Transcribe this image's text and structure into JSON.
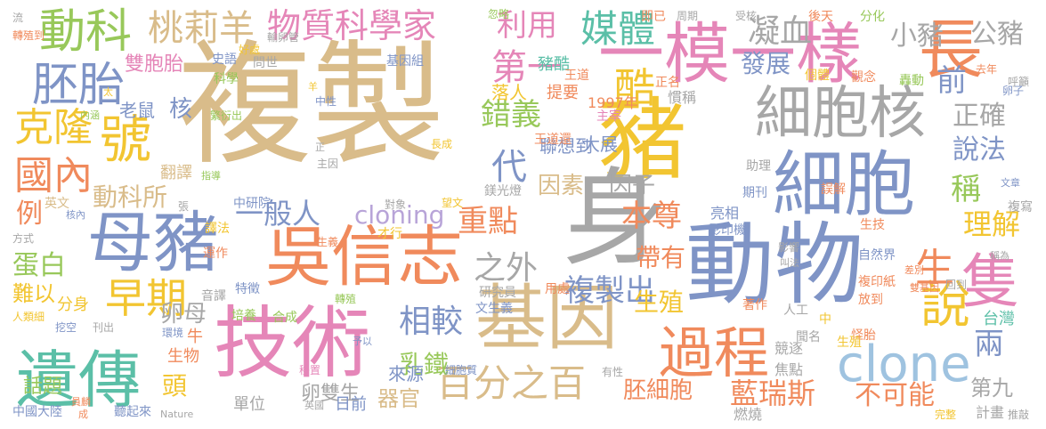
{
  "palette": {
    "tan": "#d9bc8a",
    "blue": "#7f94c6",
    "pink": "#e586b8",
    "orange": "#f08a5c",
    "yellow": "#f2c531",
    "green": "#98c85a",
    "teal": "#5bbfa7",
    "grey": "#a7a7a7",
    "lavender": "#b8a4d8",
    "lightblue": "#9fc3e0"
  },
  "words": [
    {
      "text": "複製",
      "color": "#d9bc8a"
    },
    {
      "text": "豬",
      "color": "#f2c531"
    },
    {
      "text": "身",
      "color": "#a7a7a7"
    },
    {
      "text": "動物",
      "color": "#7f94c6"
    },
    {
      "text": "基因",
      "color": "#d9bc8a"
    },
    {
      "text": "技術",
      "color": "#e586b8"
    },
    {
      "text": "一模一樣",
      "color": "#e586b8"
    },
    {
      "text": "吳信志",
      "color": "#f08a5c"
    },
    {
      "text": "母豬",
      "color": "#7f94c6"
    },
    {
      "text": "細胞",
      "color": "#7f94c6"
    },
    {
      "text": "遺傳",
      "color": "#5bbfa7"
    },
    {
      "text": "細胞核",
      "color": "#a7a7a7"
    },
    {
      "text": "過程",
      "color": "#f08a5c"
    },
    {
      "text": "clone",
      "color": "#9fc3e0"
    },
    {
      "text": "動科",
      "color": "#98c85a"
    },
    {
      "text": "胚胎",
      "color": "#7f94c6"
    },
    {
      "text": "號",
      "color": "#f2c531"
    },
    {
      "text": "克隆",
      "color": "#f2c531"
    },
    {
      "text": "國內",
      "color": "#f08a5c"
    },
    {
      "text": "早期",
      "color": "#f2c531"
    },
    {
      "text": "桃莉羊",
      "color": "#d9bc8a"
    },
    {
      "text": "物質科學家",
      "color": "#e586b8"
    },
    {
      "text": "利用",
      "color": "#e586b8"
    },
    {
      "text": "媒體",
      "color": "#5bbfa7"
    },
    {
      "text": "第一",
      "color": "#e586b8"
    },
    {
      "text": "酷",
      "color": "#f2c531"
    },
    {
      "text": "長",
      "color": "#f08a5c"
    },
    {
      "text": "凝血",
      "color": "#a7a7a7"
    },
    {
      "text": "小豬",
      "color": "#a7a7a7"
    },
    {
      "text": "公豬",
      "color": "#a7a7a7"
    },
    {
      "text": "隻",
      "color": "#e586b8"
    },
    {
      "text": "說",
      "color": "#f2c531"
    },
    {
      "text": "百分之百",
      "color": "#d9bc8a"
    },
    {
      "text": "一般人",
      "color": "#7f94c6"
    },
    {
      "text": "cloning",
      "color": "#b8a4d8"
    },
    {
      "text": "重點",
      "color": "#f08a5c"
    },
    {
      "text": "本尊",
      "color": "#f08a5c"
    },
    {
      "text": "之外",
      "color": "#a7a7a7"
    },
    {
      "text": "相較",
      "color": "#7f94c6"
    },
    {
      "text": "複製出",
      "color": "#7f94c6"
    },
    {
      "text": "藍瑞斯",
      "color": "#f08a5c"
    },
    {
      "text": "不可能",
      "color": "#f08a5c"
    },
    {
      "text": "錯義",
      "color": "#98c85a"
    },
    {
      "text": "代",
      "color": "#7f94c6"
    },
    {
      "text": "因素",
      "color": "#d9bc8a"
    },
    {
      "text": "因子",
      "color": "#a7a7a7"
    },
    {
      "text": "說法",
      "color": "#7f94c6"
    },
    {
      "text": "稱",
      "color": "#98c85a"
    },
    {
      "text": "理解",
      "color": "#f2c531"
    },
    {
      "text": "正確",
      "color": "#a7a7a7"
    },
    {
      "text": "前",
      "color": "#7f94c6"
    },
    {
      "text": "發展",
      "color": "#7f94c6"
    },
    {
      "text": "乳鐵",
      "color": "#98c85a"
    },
    {
      "text": "卵母",
      "color": "#a7a7a7"
    },
    {
      "text": "生殖",
      "color": "#f2c531"
    },
    {
      "text": "帶有",
      "color": "#f08a5c"
    },
    {
      "text": "動科所",
      "color": "#d9bc8a"
    },
    {
      "text": "蛋白",
      "color": "#98c85a"
    },
    {
      "text": "難以",
      "color": "#f2c531"
    },
    {
      "text": "胚細胞",
      "color": "#f08a5c"
    },
    {
      "text": "第九",
      "color": "#a7a7a7"
    },
    {
      "text": "兩",
      "color": "#7f94c6"
    },
    {
      "text": "生",
      "color": "#f08a5c"
    },
    {
      "text": "器官",
      "color": "#d9bc8a"
    },
    {
      "text": "卵雙生",
      "color": "#a7a7a7"
    },
    {
      "text": "頭",
      "color": "#f2c531"
    },
    {
      "text": "雙胞胎",
      "color": "#e586b8"
    },
    {
      "text": "核",
      "color": "#7f94c6"
    },
    {
      "text": "提要",
      "color": "#f08a5c"
    },
    {
      "text": "豬酷",
      "color": "#5bbfa7"
    },
    {
      "text": "落人",
      "color": "#f2c531"
    },
    {
      "text": "聯想到",
      "color": "#7f94c6"
    },
    {
      "text": "1997年",
      "color": "#f08a5c"
    },
    {
      "text": "大展",
      "color": "#7f94c6"
    },
    {
      "text": "例",
      "color": "#f08a5c"
    },
    {
      "text": "話題",
      "color": "#98c85a"
    },
    {
      "text": "翻譯",
      "color": "#d9bc8a"
    },
    {
      "text": "老鼠",
      "color": "#7f94c6"
    },
    {
      "text": "生物",
      "color": "#f08a5c"
    },
    {
      "text": "牛",
      "color": "#f08a5c"
    },
    {
      "text": "分身",
      "color": "#f2c531"
    },
    {
      "text": "日前",
      "color": "#7f94c6"
    },
    {
      "text": "單位",
      "color": "#a7a7a7"
    },
    {
      "text": "來源",
      "color": "#7f94c6"
    },
    {
      "text": "燃燒",
      "color": "#a7a7a7"
    },
    {
      "text": "計畫",
      "color": "#a7a7a7"
    },
    {
      "text": "競逐",
      "color": "#a7a7a7"
    },
    {
      "text": "焦點",
      "color": "#a7a7a7"
    },
    {
      "text": "台灣",
      "color": "#5bbfa7"
    },
    {
      "text": "亮相",
      "color": "#7f94c6"
    },
    {
      "text": "中國大陸",
      "color": "#7f94c6"
    },
    {
      "text": "聽起來",
      "color": "#7f94c6"
    },
    {
      "text": "研究員",
      "color": "#a7a7a7"
    },
    {
      "text": "用處",
      "color": "#f08a5c"
    },
    {
      "text": "鎂光燈",
      "color": "#a7a7a7"
    },
    {
      "text": "中研院",
      "color": "#7f94c6"
    },
    {
      "text": "慣稱",
      "color": "#a7a7a7"
    },
    {
      "text": "特徵",
      "color": "#7f94c6"
    },
    {
      "text": "生技",
      "color": "#f08a5c"
    },
    {
      "text": "複印紙",
      "color": "#f08a5c"
    },
    {
      "text": "影印機",
      "color": "#7f94c6"
    },
    {
      "text": "英文",
      "color": "#d9bc8a"
    },
    {
      "text": "史語",
      "color": "#7f94c6"
    },
    {
      "text": "科學",
      "color": "#98c85a"
    },
    {
      "text": "好處",
      "color": "#f2c531"
    },
    {
      "text": "問世",
      "color": "#a7a7a7"
    },
    {
      "text": "中性",
      "color": "#7f94c6"
    },
    {
      "text": "主宰",
      "color": "#e586b8"
    },
    {
      "text": "王道",
      "color": "#f08a5c"
    },
    {
      "text": "正名",
      "color": "#f08a5c"
    },
    {
      "text": "個體",
      "color": "#f2c531"
    },
    {
      "text": "觀念",
      "color": "#f08a5c"
    },
    {
      "text": "轟動",
      "color": "#98c85a"
    },
    {
      "text": "助理",
      "color": "#a7a7a7"
    },
    {
      "text": "期刊",
      "color": "#7f94c6"
    },
    {
      "text": "著作",
      "color": "#f08a5c"
    },
    {
      "text": "誤解",
      "color": "#f08a5c"
    },
    {
      "text": "放到",
      "color": "#f08a5c"
    },
    {
      "text": "怪胎",
      "color": "#f08a5c"
    },
    {
      "text": "人工",
      "color": "#a7a7a7"
    },
    {
      "text": "聞名",
      "color": "#a7a7a7"
    },
    {
      "text": "中",
      "color": "#f2c531"
    },
    {
      "text": "生殖",
      "color": "#f2c531"
    },
    {
      "text": "自然界",
      "color": "#7f94c6"
    },
    {
      "text": "文生義",
      "color": "#7f94c6"
    },
    {
      "text": "基因組",
      "color": "#7f94c6"
    },
    {
      "text": "王道還",
      "color": "#f08a5c"
    },
    {
      "text": "即已",
      "color": "#f08a5c"
    },
    {
      "text": "分化",
      "color": "#98c85a"
    },
    {
      "text": "後天",
      "color": "#f08a5c"
    },
    {
      "text": "受核",
      "color": "#a7a7a7"
    },
    {
      "text": "周期",
      "color": "#a7a7a7"
    },
    {
      "text": "忽略",
      "color": "#98c85a"
    },
    {
      "text": "流",
      "color": "#a7a7a7"
    },
    {
      "text": "轉殖到",
      "color": "#f08a5c"
    },
    {
      "text": "輸卵管",
      "color": "#a7a7a7"
    },
    {
      "text": "內涵",
      "color": "#98c85a"
    },
    {
      "text": "指導",
      "color": "#98c85a"
    },
    {
      "text": "譯法",
      "color": "#f2c531"
    },
    {
      "text": "運作",
      "color": "#f08a5c"
    },
    {
      "text": "音譯",
      "color": "#a7a7a7"
    },
    {
      "text": "培養",
      "color": "#98c85a"
    },
    {
      "text": "合成",
      "color": "#98c85a"
    },
    {
      "text": "轉殖",
      "color": "#98c85a"
    },
    {
      "text": "環境",
      "color": "#7f94c6"
    },
    {
      "text": "挖空",
      "color": "#7f94c6"
    },
    {
      "text": "刊出",
      "color": "#a7a7a7"
    },
    {
      "text": "人類細",
      "color": "#f2c531"
    },
    {
      "text": "核內",
      "color": "#7f94c6"
    },
    {
      "text": "方式",
      "color": "#a7a7a7"
    },
    {
      "text": "張",
      "color": "#a7a7a7"
    },
    {
      "text": "對象",
      "color": "#a7a7a7"
    },
    {
      "text": "望文",
      "color": "#f2c531"
    },
    {
      "text": "才行",
      "color": "#f2c531"
    },
    {
      "text": "生義",
      "color": "#f08a5c"
    },
    {
      "text": "主因",
      "color": "#a7a7a7"
    },
    {
      "text": "長成",
      "color": "#f2c531"
    },
    {
      "text": "影響",
      "color": "#a7a7a7"
    },
    {
      "text": "叫法",
      "color": "#a7a7a7"
    },
    {
      "text": "稱為",
      "color": "#a7a7a7"
    },
    {
      "text": "回到",
      "color": "#a7a7a7"
    },
    {
      "text": "差別",
      "color": "#f08a5c"
    },
    {
      "text": "雙基因",
      "color": "#f08a5c"
    },
    {
      "text": "複寫",
      "color": "#a7a7a7"
    },
    {
      "text": "文章",
      "color": "#7f94c6"
    },
    {
      "text": "呼籲",
      "color": "#a7a7a7"
    },
    {
      "text": "去年",
      "color": "#f08a5c"
    },
    {
      "text": "卵子",
      "color": "#7f94c6"
    },
    {
      "text": "完整",
      "color": "#f2c531"
    },
    {
      "text": "推敲",
      "color": "#a7a7a7"
    },
    {
      "text": "移置",
      "color": "#e586b8"
    },
    {
      "text": "予以",
      "color": "#7f94c6"
    },
    {
      "text": "細胞質",
      "color": "#7f94c6"
    },
    {
      "text": "英國",
      "color": "#a7a7a7"
    },
    {
      "text": "Nature",
      "color": "#a7a7a7"
    },
    {
      "text": "成",
      "color": "#f08a5c"
    },
    {
      "text": "員麟",
      "color": "#f08a5c"
    },
    {
      "text": "有性",
      "color": "#a7a7a7"
    },
    {
      "text": "繁衍出",
      "color": "#98c85a"
    },
    {
      "text": "羊",
      "color": "#f2c531"
    },
    {
      "text": "太",
      "color": "#f2c531"
    },
    {
      "text": "正",
      "color": "#a7a7a7"
    }
  ]
}
